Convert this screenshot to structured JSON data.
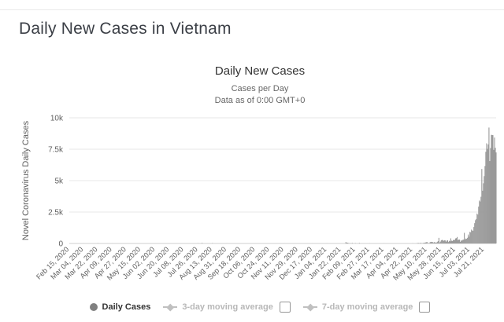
{
  "page": {
    "title": "Daily New Cases in Vietnam"
  },
  "chart": {
    "colors": {
      "bar": "#999999",
      "grid": "#e7e7e7",
      "axis": "#cfcfcf",
      "tick": "#5f5f5f",
      "title": "#333333",
      "subtitle": "#666666",
      "legend_active": "#333333",
      "legend_disabled": "#b8b8b8",
      "heading": "#3b3f46"
    }
  },
  "legend": {
    "items": [
      {
        "label": "Daily Cases",
        "marker": "circle",
        "active": true,
        "checkbox": false
      },
      {
        "label": "3-day moving average",
        "marker": "line-diamond",
        "active": false,
        "checkbox": true,
        "checked": false
      },
      {
        "label": "7-day moving average",
        "marker": "line-diamond",
        "active": false,
        "checkbox": true,
        "checked": false
      }
    ]
  },
  "chart_data": {
    "type": "bar",
    "title": "Daily New Cases",
    "subtitle": [
      "Cases per Day",
      "Data as of 0:00 GMT+0"
    ],
    "series_name": "Daily Cases",
    "xlabel": "",
    "ylabel": "Novel Coronavirus Daily Cases",
    "ylim": [
      0,
      10000
    ],
    "grid": true,
    "legend_position": "bottom",
    "y_ticks": [
      [
        0,
        "0"
      ],
      [
        2500,
        "2.5k"
      ],
      [
        5000,
        "5k"
      ],
      [
        7500,
        "7.5k"
      ],
      [
        10000,
        "10k"
      ]
    ],
    "x_range": [
      "2020-02-15",
      "2021-08-05"
    ],
    "x_tick_labels": [
      "Feb 15, 2020",
      "Mar 04, 2020",
      "Mar 22, 2020",
      "Apr 09, 2020",
      "Apr 27, 2020",
      "May 15, 2020",
      "Jun 02, 2020",
      "Jun 20, 2020",
      "Jul 08, 2020",
      "Jul 26, 2020",
      "Aug 13, 2020",
      "Aug 31, 2020",
      "Sep 18, 2020",
      "Oct 06, 2020",
      "Oct 24, 2020",
      "Nov 11, 2020",
      "Nov 29, 2020",
      "Dec 17, 2020",
      "Jan 04, 2021",
      "Jan 22, 2021",
      "Feb 09, 2021",
      "Feb 27, 2021",
      "Mar 17, 2021",
      "Apr 04, 2021",
      "Apr 22, 2021",
      "May 10, 2021",
      "May 28, 2021",
      "Jun 15, 2021",
      "Jul 03, 2021",
      "Jul 21, 2021"
    ],
    "points": [
      [
        "2020-02-15",
        0
      ],
      [
        "2020-03-04",
        5
      ],
      [
        "2020-03-22",
        19
      ],
      [
        "2020-04-09",
        4
      ],
      [
        "2020-04-27",
        0
      ],
      [
        "2020-05-15",
        0
      ],
      [
        "2020-06-02",
        0
      ],
      [
        "2020-06-20",
        0
      ],
      [
        "2020-07-08",
        0
      ],
      [
        "2020-07-26",
        12
      ],
      [
        "2020-07-31",
        45
      ],
      [
        "2020-08-13",
        25
      ],
      [
        "2020-08-31",
        4
      ],
      [
        "2020-09-18",
        3
      ],
      [
        "2020-10-06",
        1
      ],
      [
        "2020-10-24",
        3
      ],
      [
        "2020-11-11",
        4
      ],
      [
        "2020-11-29",
        3
      ],
      [
        "2020-12-17",
        5
      ],
      [
        "2021-01-04",
        4
      ],
      [
        "2021-01-22",
        2
      ],
      [
        "2021-01-28",
        110
      ],
      [
        "2021-01-29",
        53
      ],
      [
        "2021-01-30",
        61
      ],
      [
        "2021-01-31",
        36
      ],
      [
        "2021-02-02",
        31
      ],
      [
        "2021-02-05",
        40
      ],
      [
        "2021-02-09",
        25
      ],
      [
        "2021-02-14",
        40
      ],
      [
        "2021-02-27",
        6
      ],
      [
        "2021-03-17",
        7
      ],
      [
        "2021-04-04",
        3
      ],
      [
        "2021-04-22",
        8
      ],
      [
        "2021-04-27",
        10
      ],
      [
        "2021-04-28",
        8
      ],
      [
        "2021-04-29",
        45
      ],
      [
        "2021-04-30",
        14
      ],
      [
        "2021-05-01",
        14
      ],
      [
        "2021-05-02",
        48
      ],
      [
        "2021-05-03",
        19
      ],
      [
        "2021-05-04",
        11
      ],
      [
        "2021-05-05",
        26
      ],
      [
        "2021-05-06",
        56
      ],
      [
        "2021-05-07",
        46
      ],
      [
        "2021-05-08",
        78
      ],
      [
        "2021-05-09",
        92
      ],
      [
        "2021-05-10",
        125
      ],
      [
        "2021-05-11",
        28
      ],
      [
        "2021-05-12",
        34
      ],
      [
        "2021-05-13",
        35
      ],
      [
        "2021-05-14",
        105
      ],
      [
        "2021-05-15",
        129
      ],
      [
        "2021-05-16",
        127
      ],
      [
        "2021-05-17",
        116
      ],
      [
        "2021-05-18",
        48
      ],
      [
        "2021-05-19",
        109
      ],
      [
        "2021-05-20",
        95
      ],
      [
        "2021-05-21",
        57
      ],
      [
        "2021-05-22",
        73
      ],
      [
        "2021-05-23",
        123
      ],
      [
        "2021-05-24",
        187
      ],
      [
        "2021-05-25",
        447
      ],
      [
        "2021-05-26",
        80
      ],
      [
        "2021-05-27",
        150
      ],
      [
        "2021-05-28",
        254
      ],
      [
        "2021-05-29",
        286
      ],
      [
        "2021-05-30",
        251
      ],
      [
        "2021-05-31",
        211
      ],
      [
        "2021-06-01",
        251
      ],
      [
        "2021-06-02",
        241
      ],
      [
        "2021-06-03",
        137
      ],
      [
        "2021-06-04",
        224
      ],
      [
        "2021-06-05",
        251
      ],
      [
        "2021-06-06",
        114
      ],
      [
        "2021-06-07",
        211
      ],
      [
        "2021-06-08",
        175
      ],
      [
        "2021-06-09",
        407
      ],
      [
        "2021-06-10",
        219
      ],
      [
        "2021-06-11",
        196
      ],
      [
        "2021-06-12",
        261
      ],
      [
        "2021-06-13",
        297
      ],
      [
        "2021-06-14",
        272
      ],
      [
        "2021-06-15",
        402
      ],
      [
        "2021-06-16",
        423
      ],
      [
        "2021-06-17",
        515
      ],
      [
        "2021-06-18",
        264
      ],
      [
        "2021-06-19",
        308
      ],
      [
        "2021-06-20",
        311
      ],
      [
        "2021-06-21",
        135
      ],
      [
        "2021-06-22",
        248
      ],
      [
        "2021-06-23",
        220
      ],
      [
        "2021-06-24",
        285
      ],
      [
        "2021-06-25",
        305
      ],
      [
        "2021-06-26",
        845
      ],
      [
        "2021-06-27",
        323
      ],
      [
        "2021-06-28",
        391
      ],
      [
        "2021-06-29",
        372
      ],
      [
        "2021-06-30",
        450
      ],
      [
        "2021-07-01",
        713
      ],
      [
        "2021-07-02",
        545
      ],
      [
        "2021-07-03",
        922
      ],
      [
        "2021-07-04",
        887
      ],
      [
        "2021-07-05",
        1102
      ],
      [
        "2021-07-06",
        1029
      ],
      [
        "2021-07-07",
        1007
      ],
      [
        "2021-07-08",
        1307
      ],
      [
        "2021-07-09",
        1616
      ],
      [
        "2021-07-10",
        1853
      ],
      [
        "2021-07-11",
        1945
      ],
      [
        "2021-07-12",
        2383
      ],
      [
        "2021-07-13",
        2296
      ],
      [
        "2021-07-14",
        2934
      ],
      [
        "2021-07-15",
        3416
      ],
      [
        "2021-07-16",
        3336
      ],
      [
        "2021-07-17",
        3718
      ],
      [
        "2021-07-18",
        5926
      ],
      [
        "2021-07-19",
        4195
      ],
      [
        "2021-07-20",
        4789
      ],
      [
        "2021-07-21",
        5357
      ],
      [
        "2021-07-22",
        6164
      ],
      [
        "2021-07-23",
        7295
      ],
      [
        "2021-07-24",
        7968
      ],
      [
        "2021-07-25",
        7531
      ],
      [
        "2021-07-26",
        7882
      ],
      [
        "2021-07-27",
        9225
      ],
      [
        "2021-07-28",
        6559
      ],
      [
        "2021-07-29",
        7594
      ],
      [
        "2021-07-30",
        8649
      ],
      [
        "2021-07-31",
        8624
      ],
      [
        "2021-08-01",
        8620
      ],
      [
        "2021-08-02",
        7445
      ],
      [
        "2021-08-03",
        8429
      ],
      [
        "2021-08-04",
        7618
      ],
      [
        "2021-08-05",
        7244
      ]
    ]
  }
}
